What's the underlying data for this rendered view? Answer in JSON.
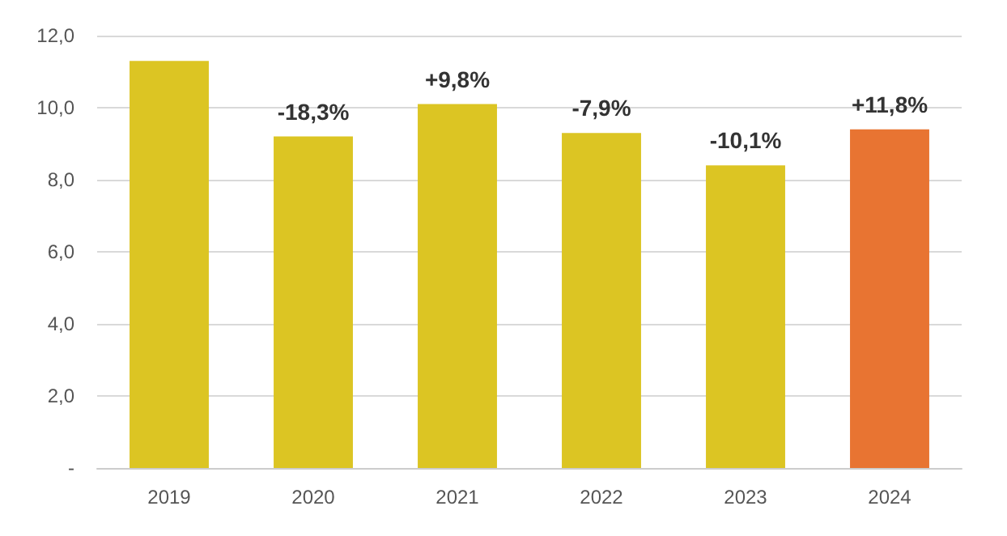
{
  "chart_data": {
    "type": "bar",
    "categories": [
      "2019",
      "2020",
      "2021",
      "2022",
      "2023",
      "2024"
    ],
    "values": [
      11.3,
      9.2,
      10.1,
      9.3,
      8.4,
      9.4
    ],
    "colors": [
      "#dcc523",
      "#dcc523",
      "#dcc523",
      "#dcc523",
      "#dcc523",
      "#e87432"
    ],
    "annotations": [
      {
        "text": "-18,3%",
        "x": "2020",
        "y": 9.2
      },
      {
        "text": "+9,8%",
        "x": "2021",
        "y": 10.1
      },
      {
        "text": "-7,9%",
        "x": "2022",
        "y": 9.3
      },
      {
        "text": "-10,1%",
        "x": "2023",
        "y": 8.4
      },
      {
        "text": "+11,8%",
        "x": "2024",
        "y": 9.4
      }
    ],
    "ylim": [
      0,
      12
    ],
    "yticks": [
      {
        "value": 0,
        "label": "-"
      },
      {
        "value": 2,
        "label": "2,0"
      },
      {
        "value": 4,
        "label": "4,0"
      },
      {
        "value": 6,
        "label": "6,0"
      },
      {
        "value": 8,
        "label": "8,0"
      },
      {
        "value": 10,
        "label": "10,0"
      },
      {
        "value": 12,
        "label": "12,0"
      }
    ],
    "grid": "y"
  }
}
